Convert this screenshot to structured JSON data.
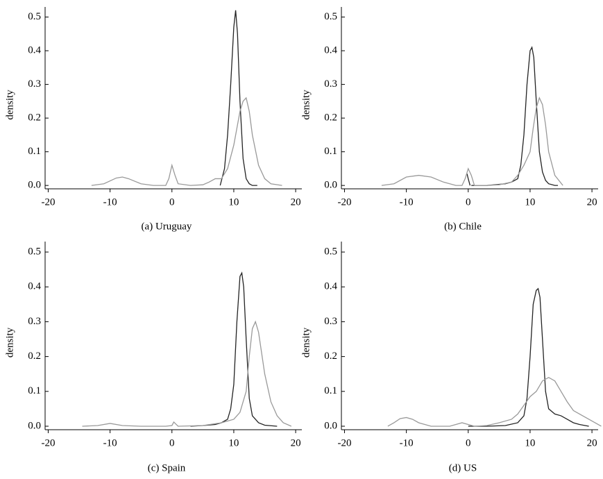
{
  "chart_data": [
    {
      "type": "line",
      "caption": "(a) Uruguay",
      "ylabel": "density",
      "xlim": [
        -20.5,
        21
      ],
      "ylim": [
        -0.01,
        0.53
      ],
      "xticks": [
        -20,
        -10,
        0,
        10,
        20
      ],
      "yticks": [
        {
          "value": 0,
          "label": "0.0"
        },
        0.1,
        0.2,
        0.3,
        0.4,
        0.5
      ],
      "series": [
        {
          "color": "#222222",
          "x": [
            7.8,
            8.5,
            9,
            9.5,
            10,
            10.3,
            10.6,
            11,
            11.5,
            12,
            12.5,
            13,
            13.8
          ],
          "values": [
            0,
            0.05,
            0.15,
            0.3,
            0.47,
            0.52,
            0.45,
            0.25,
            0.08,
            0.02,
            0.005,
            0,
            0
          ]
        },
        {
          "color": "#999999",
          "x": [
            -13,
            -11,
            -9,
            -8,
            -7,
            -5,
            -3,
            -1,
            -0.5,
            0,
            0.5,
            1,
            3,
            5,
            6,
            7,
            8,
            9,
            10,
            11,
            11.5,
            12,
            12.5,
            13,
            14,
            15,
            16,
            17.8
          ],
          "values": [
            0,
            0.005,
            0.022,
            0.025,
            0.02,
            0.005,
            0,
            0,
            0.02,
            0.06,
            0.03,
            0.005,
            0,
            0.002,
            0.01,
            0.02,
            0.02,
            0.05,
            0.12,
            0.22,
            0.25,
            0.26,
            0.22,
            0.15,
            0.06,
            0.02,
            0.005,
            0
          ]
        }
      ]
    },
    {
      "type": "line",
      "caption": "(b) Chile",
      "ylabel": "density",
      "xlim": [
        -20.5,
        21
      ],
      "ylim": [
        -0.01,
        0.53
      ],
      "xticks": [
        -20,
        -10,
        0,
        10,
        20
      ],
      "yticks": [
        {
          "value": 0,
          "label": "0.0"
        },
        0.1,
        0.2,
        0.3,
        0.4,
        0.5
      ],
      "series": [
        {
          "color": "#222222",
          "x": [
            -0.2,
            0,
            0.3,
            0.4,
            0.5,
            3,
            6,
            7,
            8,
            8.5,
            9,
            9.5,
            10,
            10.3,
            10.6,
            11,
            11.5,
            12,
            12.5,
            13,
            14,
            14.5
          ],
          "values": [
            0.035,
            0.02,
            0,
            null,
            0,
            0,
            0.005,
            0.01,
            0.02,
            0.06,
            0.15,
            0.3,
            0.4,
            0.41,
            0.38,
            0.25,
            0.1,
            0.04,
            0.015,
            0.005,
            0,
            0
          ]
        },
        {
          "color": "#999999",
          "x": [
            -14,
            -12,
            -10,
            -8,
            -6,
            -4,
            -2,
            -1,
            -0.5,
            0,
            0.5,
            1,
            3,
            5,
            7,
            8,
            9,
            10,
            10.5,
            11,
            11.5,
            12,
            12.5,
            13,
            14,
            15.3
          ],
          "values": [
            0,
            0.005,
            0.025,
            0.03,
            0.025,
            0.01,
            0,
            0,
            0.02,
            0.05,
            0.03,
            0,
            0,
            0.002,
            0.01,
            0.03,
            0.06,
            0.1,
            0.17,
            0.23,
            0.26,
            0.24,
            0.18,
            0.1,
            0.03,
            0
          ]
        }
      ]
    },
    {
      "type": "line",
      "caption": "(c) Spain",
      "ylabel": "density",
      "xlim": [
        -20.5,
        21
      ],
      "ylim": [
        -0.01,
        0.53
      ],
      "xticks": [
        -20,
        -10,
        0,
        10,
        20
      ],
      "yticks": [
        {
          "value": 0,
          "label": "0.0"
        },
        0.1,
        0.2,
        0.3,
        0.4,
        0.5
      ],
      "series": [
        {
          "color": "#222222",
          "x": [
            3,
            5,
            7,
            8,
            9,
            9.5,
            10,
            10.5,
            11,
            11.3,
            11.6,
            12,
            12.5,
            13,
            14,
            15,
            17
          ],
          "values": [
            0,
            0.002,
            0.005,
            0.01,
            0.02,
            0.05,
            0.12,
            0.3,
            0.43,
            0.44,
            0.4,
            0.25,
            0.08,
            0.03,
            0.01,
            0.003,
            0
          ]
        },
        {
          "color": "#999999",
          "x": [
            -14.5,
            -12,
            -10,
            -8,
            -5,
            -1,
            0,
            0.3,
            1,
            5,
            8,
            9,
            10,
            11,
            12,
            12.5,
            13,
            13.5,
            14,
            15,
            16,
            17,
            18,
            19.3
          ],
          "values": [
            0,
            0.002,
            0.008,
            0.002,
            0,
            0,
            0.002,
            0.012,
            0,
            0.002,
            0.01,
            0.015,
            0.02,
            0.04,
            0.1,
            0.2,
            0.28,
            0.3,
            0.27,
            0.15,
            0.07,
            0.03,
            0.01,
            0
          ]
        }
      ]
    },
    {
      "type": "line",
      "caption": "(d) US",
      "ylabel": "density",
      "xlim": [
        -20.5,
        21
      ],
      "ylim": [
        -0.01,
        0.53
      ],
      "xticks": [
        -20,
        -10,
        0,
        10,
        20
      ],
      "yticks": [
        {
          "value": 0,
          "label": "0.0"
        },
        0.1,
        0.2,
        0.3,
        0.4,
        0.5
      ],
      "series": [
        {
          "color": "#222222",
          "x": [
            0,
            3,
            6,
            8,
            9,
            9.5,
            10,
            10.5,
            11,
            11.3,
            11.6,
            12,
            12.5,
            13,
            14,
            15,
            16,
            17,
            18,
            19.5
          ],
          "values": [
            0,
            0,
            0.002,
            0.01,
            0.03,
            0.08,
            0.2,
            0.35,
            0.39,
            0.395,
            0.37,
            0.25,
            0.1,
            0.05,
            0.035,
            0.03,
            0.02,
            0.01,
            0.005,
            0
          ]
        },
        {
          "color": "#999999",
          "x": [
            -13,
            -12,
            -11,
            -10,
            -9,
            -8,
            -6,
            -3,
            -1,
            0,
            1,
            3,
            5,
            7,
            8,
            9,
            10,
            11,
            12,
            13,
            14,
            15,
            16,
            17,
            18,
            19,
            20,
            21.5
          ],
          "values": [
            0,
            0.01,
            0.022,
            0.025,
            0.02,
            0.01,
            0,
            0,
            0.01,
            0.005,
            0,
            0.002,
            0.01,
            0.02,
            0.035,
            0.06,
            0.085,
            0.1,
            0.13,
            0.14,
            0.13,
            0.1,
            0.07,
            0.045,
            0.035,
            0.025,
            0.015,
            0
          ]
        }
      ]
    }
  ]
}
